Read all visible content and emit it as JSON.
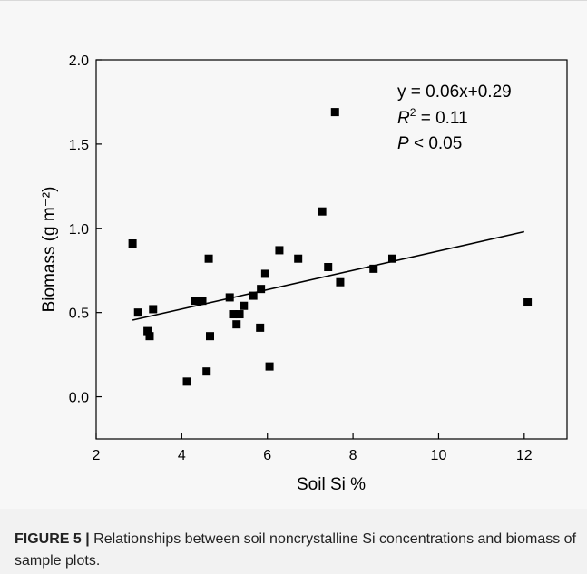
{
  "chart_data": {
    "type": "scatter",
    "xlabel": "Soil Si %",
    "ylabel": "Biomass (g m⁻²)",
    "xlim": [
      2,
      13
    ],
    "ylim": [
      -0.25,
      2.0
    ],
    "xticks": [
      2,
      4,
      6,
      8,
      10,
      12
    ],
    "yticks": [
      0.0,
      0.5,
      1.0,
      1.5,
      2.0
    ],
    "xtick_labels": [
      "2",
      "4",
      "6",
      "8",
      "10",
      "12"
    ],
    "ytick_labels": [
      "0.0",
      "0.5",
      "1.0",
      "1.5",
      "2.0"
    ],
    "series": [
      {
        "points": [
          [
            2.85,
            0.91
          ],
          [
            2.98,
            0.5
          ],
          [
            3.2,
            0.39
          ],
          [
            3.25,
            0.36
          ],
          [
            3.33,
            0.52
          ],
          [
            4.12,
            0.09
          ],
          [
            4.32,
            0.57
          ],
          [
            4.48,
            0.57
          ],
          [
            4.58,
            0.15
          ],
          [
            4.63,
            0.82
          ],
          [
            4.66,
            0.36
          ],
          [
            5.12,
            0.59
          ],
          [
            5.2,
            0.49
          ],
          [
            5.28,
            0.43
          ],
          [
            5.35,
            0.49
          ],
          [
            5.45,
            0.54
          ],
          [
            5.67,
            0.6
          ],
          [
            5.85,
            0.64
          ],
          [
            5.83,
            0.41
          ],
          [
            5.95,
            0.73
          ],
          [
            6.05,
            0.18
          ],
          [
            6.28,
            0.87
          ],
          [
            6.72,
            0.82
          ],
          [
            7.28,
            1.1
          ],
          [
            7.42,
            0.77
          ],
          [
            7.58,
            1.69
          ],
          [
            7.7,
            0.68
          ],
          [
            8.48,
            0.76
          ],
          [
            8.92,
            0.82
          ],
          [
            12.08,
            0.56
          ]
        ],
        "marker": "square",
        "color": "#000000"
      }
    ],
    "fit_line": {
      "x": [
        2.85,
        12.0
      ],
      "y": [
        0.455,
        0.98
      ],
      "color": "#000000"
    },
    "annotations": {
      "equation": "y = 0.06x+0.29",
      "r2_symbol": "R",
      "r2_sup": "2",
      "r2_value": " = 0.11",
      "p_symbol": "P",
      "p_value": " < 0.05"
    },
    "grid": false
  },
  "caption": {
    "label": "FIGURE 5 |",
    "text": " Relationships between soil noncrystalline Si concentrations and biomass of sample plots."
  }
}
